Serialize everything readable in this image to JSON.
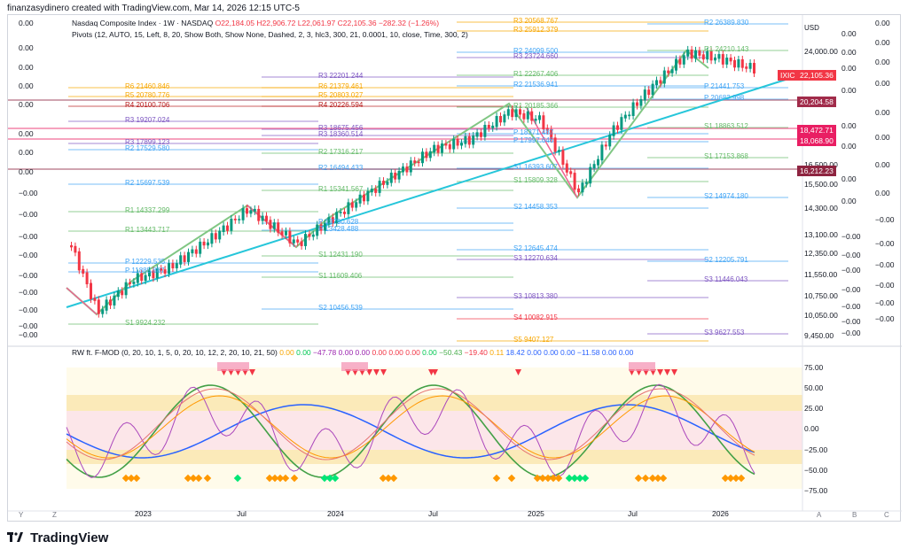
{
  "caption": "finanzasydinero created with TradingView.com, Mar 14, 2026 12:15 UTC-5",
  "legend": {
    "symbol": "Nasdaq Composite Index · 1W · NASDAQ",
    "o": "O22,184.05",
    "h": "H22,906.72",
    "l": "L22,061.97",
    "c": "C22,105.36",
    "chg": "−282.32 (−1.26%)",
    "pivots": "Pivots (12, AUTO, 15, Left, 8, 20, Show Both, Show None, Dashed, 2, 3, hlc3, 300, 21, 0.0001, 10, close, Time, 300, 2)"
  },
  "currency": "USD",
  "price_axis": [
    "24,000.00",
    "16,500.00",
    "15,500.00",
    "14,300.00",
    "13,100.00",
    "12,350.00",
    "11,550.00",
    "10,750.00",
    "10,050.00",
    "9,450.00"
  ],
  "price_tags": {
    "symbol_badge": "IXIC",
    "last": "22,105.36",
    "t1": "20,204.58",
    "t2": "18,472.71",
    "t3": "18,068.90",
    "t4": "16,212.23"
  },
  "left_zeros": [
    "0.00",
    "0.00",
    "0.00",
    "0.00",
    "0.00",
    "0.00",
    "0.00",
    "0.00",
    "−0.00",
    "−0.00",
    "−0.00",
    "−0.00",
    "−0.00",
    "−0.00",
    "−0.00",
    "−0.00",
    "−0.00",
    "−0.00"
  ],
  "right_zeros": [
    "0.00",
    "0.00",
    "0.00",
    "0.00",
    "0.00",
    "0.00",
    "0.00",
    "0.00",
    "−0.00",
    "−0.00",
    "−0.00",
    "−0.00",
    "−0.00",
    "−0.00",
    "−0.00",
    "−0.00",
    "−0.00"
  ],
  "right_zeros2": [
    "0.00",
    "0.00",
    "0.00",
    "0.00",
    "0.00",
    "0.00",
    "0.00",
    "0.00",
    "−0.00",
    "−0.00",
    "−0.00",
    "−0.00",
    "−0.00",
    "−0.00"
  ],
  "pivot_labels": [
    {
      "t": "R6   21460.846"
    },
    {
      "t": "R5   20780.776"
    },
    {
      "t": "R4   20100.706"
    },
    {
      "t": "R3   19207.024"
    },
    {
      "t": "R3   17899.123"
    },
    {
      "t": "R2   17529.580"
    },
    {
      "t": "R2   15697.539"
    },
    {
      "t": "R1   14337.299"
    },
    {
      "t": "R1   13443.717"
    },
    {
      "t": "P   12229.535"
    },
    {
      "t": "P   11885.887"
    },
    {
      "t": "S1   9924.232"
    },
    {
      "t": "R3   22201.244"
    },
    {
      "t": "R6   21379.461"
    },
    {
      "t": "R5   20803.027"
    },
    {
      "t": "R4   20226.594"
    },
    {
      "t": "R3   18675.456"
    },
    {
      "t": "R3   18360.514"
    },
    {
      "t": "R2   17316.217"
    },
    {
      "t": "R2   16494.433"
    },
    {
      "t": "R1   15341.567"
    },
    {
      "t": "P   13790.628"
    },
    {
      "t": "P   13428.488"
    },
    {
      "t": "S1   12431.190"
    },
    {
      "t": "S1   11609.406"
    },
    {
      "t": "S2   10456.539"
    },
    {
      "t": "R3   20568.767"
    },
    {
      "t": "R3   25912.379"
    },
    {
      "t": "R2   24099.500"
    },
    {
      "t": "R3   23724.660"
    },
    {
      "t": "R1   22267.406"
    },
    {
      "t": "R2   21536.941"
    },
    {
      "t": "R1   20185.366"
    },
    {
      "t": "P   18371.487"
    },
    {
      "t": "P   17997.646"
    },
    {
      "t": "S1   16393.607"
    },
    {
      "t": "S1   15809.328"
    },
    {
      "t": "S2   14458.353"
    },
    {
      "t": "S2   12645.474"
    },
    {
      "t": "S3   12270.634"
    },
    {
      "t": "S3   10813.380"
    },
    {
      "t": "S4   10082.915"
    },
    {
      "t": "S5   9407.127"
    },
    {
      "t": "R2   26389.830"
    },
    {
      "t": "R1   24210.143"
    },
    {
      "t": "P   21441.753"
    },
    {
      "t": "P   20682.998"
    },
    {
      "t": "S1   18863.512"
    },
    {
      "t": "S1   17153.868"
    },
    {
      "t": "S2   14974.180"
    },
    {
      "t": "S2   12205.791"
    },
    {
      "t": "S3   11446.043"
    },
    {
      "t": "S3   9627.553"
    }
  ],
  "osc": {
    "title": "RW ft. F-MOD (0, 20, 10, 1, 5, 0, 20, 10, 12, 2, 20, 10, 21, 50)",
    "values": [
      {
        "v": "0.00",
        "c": "#f7a600"
      },
      {
        "v": "0.00",
        "c": "#00c853"
      },
      {
        "v": "−47.78",
        "c": "#9c27b0"
      },
      {
        "v": "0.00",
        "c": "#9c27b0"
      },
      {
        "v": "0.00",
        "c": "#9c27b0"
      },
      {
        "v": "0.00",
        "c": "#f23645"
      },
      {
        "v": "0.00",
        "c": "#f23645"
      },
      {
        "v": "0.00",
        "c": "#f23645"
      },
      {
        "v": "0.00",
        "c": "#00c853"
      },
      {
        "v": "−50.43",
        "c": "#4caf50"
      },
      {
        "v": "−19.40",
        "c": "#f23645"
      },
      {
        "v": "0.11",
        "c": "#f7a600"
      },
      {
        "v": "18.42",
        "c": "#2962ff"
      },
      {
        "v": "0.00",
        "c": "#2962ff"
      },
      {
        "v": "0.00",
        "c": "#2962ff"
      },
      {
        "v": "0.00",
        "c": "#2962ff"
      },
      {
        "v": "−11.58",
        "c": "#2962ff"
      },
      {
        "v": "0.00",
        "c": "#2962ff"
      },
      {
        "v": "0.00",
        "c": "#2962ff"
      }
    ],
    "axis": [
      "75.00",
      "50.00",
      "25.00",
      "0.00",
      "−25.00",
      "−50.00",
      "−75.00"
    ]
  },
  "time_axis": [
    "2023",
    "Jul",
    "2024",
    "Jul",
    "2025",
    "Jul",
    "2026"
  ],
  "bottom_buttons": {
    "y": "Y",
    "z": "Z",
    "a": "A",
    "b": "B",
    "c": "C"
  },
  "brand": "TradingView",
  "colors": {
    "up": "#089981",
    "down": "#f23645",
    "trend": "#26c6da",
    "zigzag": "#81c784",
    "zone_yellow": "#f9e3a1",
    "zone_pink": "#fbe0e4"
  }
}
